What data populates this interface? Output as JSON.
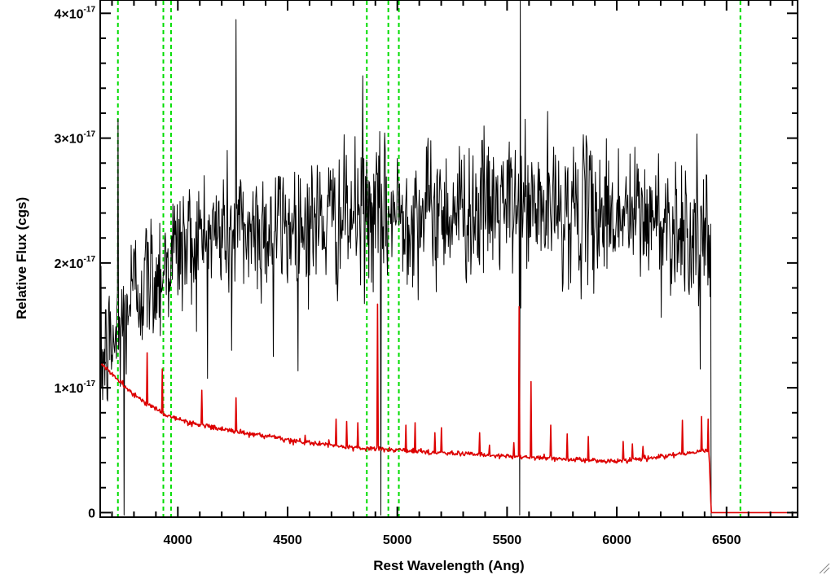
{
  "chart_data": {
    "type": "line",
    "xlabel": "Rest Wavelength (Ang)",
    "ylabel": "Relative Flux (cgs)",
    "xlim": [
      3650,
      6820
    ],
    "ylim": [
      -3e-19,
      4.1e-17
    ],
    "x_ticks": [
      {
        "value": 4000,
        "label": "4000"
      },
      {
        "value": 4500,
        "label": "4500"
      },
      {
        "value": 5000,
        "label": "5000"
      },
      {
        "value": 5500,
        "label": "5500"
      },
      {
        "value": 6000,
        "label": "6000"
      },
      {
        "value": 6500,
        "label": "6500"
      }
    ],
    "y_ticks": [
      {
        "value": 0,
        "label": "0",
        "mantissa": "",
        "exponent": ""
      },
      {
        "value": 1e-17,
        "label": "1×10⁻¹⁷",
        "mantissa": "1×10",
        "exponent": "-17"
      },
      {
        "value": 2e-17,
        "label": "2×10⁻¹⁷",
        "mantissa": "2×10",
        "exponent": "-17"
      },
      {
        "value": 3e-17,
        "label": "3×10⁻¹⁷",
        "mantissa": "3×10",
        "exponent": "-17"
      },
      {
        "value": 4e-17,
        "label": "4×10⁻¹⁷",
        "mantissa": "4×10",
        "exponent": "-17"
      }
    ],
    "x_minor_step": 100,
    "y_minor_step": 2e-18,
    "grid": false,
    "legend": "none",
    "reference_lines": {
      "style": "dashed",
      "color": "#00dd00",
      "x": [
        3727,
        3934,
        3969,
        4861,
        4959,
        5007,
        6563
      ]
    },
    "series": [
      {
        "color": "#000000",
        "style": "noisy",
        "x_range": [
          3650,
          6430
        ],
        "anchors": [
          {
            "x": 3650,
            "y": 1.2e-17
          },
          {
            "x": 3720,
            "y": 1.4e-17
          },
          {
            "x": 3800,
            "y": 1.8e-17
          },
          {
            "x": 3900,
            "y": 1.9e-17
          },
          {
            "x": 3980,
            "y": 2.1e-17
          },
          {
            "x": 4200,
            "y": 2.25e-17
          },
          {
            "x": 4500,
            "y": 2.3e-17
          },
          {
            "x": 5000,
            "y": 2.4e-17
          },
          {
            "x": 5500,
            "y": 2.45e-17
          },
          {
            "x": 6000,
            "y": 2.4e-17
          },
          {
            "x": 6300,
            "y": 2.3e-17
          },
          {
            "x": 6420,
            "y": 2.1e-17
          }
        ],
        "noise_sigma": 2.8e-18,
        "noise_step": 2.5,
        "spikes": [
          {
            "x": 3727,
            "y": 3.15e-17
          },
          {
            "x": 3755,
            "y": -2e-19
          },
          {
            "x": 4265,
            "y": 3.95e-17
          },
          {
            "x": 4842,
            "y": 3.5e-17
          },
          {
            "x": 5560,
            "y": 4.1e-17
          },
          {
            "x": 5557,
            "y": -2e-19
          },
          {
            "x": 4925,
            "y": -2e-19
          },
          {
            "x": 4245,
            "y": 1.3e-17
          },
          {
            "x": 4435,
            "y": 1.25e-17
          },
          {
            "x": 6380,
            "y": 1.15e-17
          },
          {
            "x": 6430,
            "y": -2e-19
          }
        ]
      },
      {
        "color": "#dd0000",
        "style": "noisy",
        "x_range": [
          3650,
          6820
        ],
        "anchors": [
          {
            "x": 3650,
            "y": 1.2e-17
          },
          {
            "x": 3750,
            "y": 1.02e-17
          },
          {
            "x": 3850,
            "y": 8.8e-18
          },
          {
            "x": 3950,
            "y": 7.8e-18
          },
          {
            "x": 4050,
            "y": 7.2e-18
          },
          {
            "x": 4200,
            "y": 6.7e-18
          },
          {
            "x": 4500,
            "y": 5.8e-18
          },
          {
            "x": 4800,
            "y": 5.2e-18
          },
          {
            "x": 5000,
            "y": 5e-18
          },
          {
            "x": 5500,
            "y": 4.5e-18
          },
          {
            "x": 6000,
            "y": 4.1e-18
          },
          {
            "x": 6300,
            "y": 4.7e-18
          },
          {
            "x": 6420,
            "y": 5e-18
          },
          {
            "x": 6430,
            "y": 0.0
          },
          {
            "x": 6820,
            "y": 0.0
          }
        ],
        "noise_sigma": 1e-19,
        "noise_step": 3,
        "spikes": [
          {
            "x": 3860,
            "y": 1.28e-17
          },
          {
            "x": 3930,
            "y": 1.15e-17
          },
          {
            "x": 4110,
            "y": 9.8e-18
          },
          {
            "x": 4265,
            "y": 9.2e-18
          },
          {
            "x": 4580,
            "y": 6.2e-18
          },
          {
            "x": 4720,
            "y": 7.5e-18
          },
          {
            "x": 4770,
            "y": 7.3e-18
          },
          {
            "x": 4820,
            "y": 7.2e-18
          },
          {
            "x": 4910,
            "y": 1.67e-17
          },
          {
            "x": 5040,
            "y": 7e-18
          },
          {
            "x": 5080,
            "y": 7.2e-18
          },
          {
            "x": 5170,
            "y": 6.4e-18
          },
          {
            "x": 5200,
            "y": 6.8e-18
          },
          {
            "x": 5375,
            "y": 6.4e-18
          },
          {
            "x": 5420,
            "y": 5.4e-18
          },
          {
            "x": 5530,
            "y": 5.6e-18
          },
          {
            "x": 5555,
            "y": 1.65e-17
          },
          {
            "x": 5610,
            "y": 1.05e-17
          },
          {
            "x": 5700,
            "y": 7e-18
          },
          {
            "x": 5775,
            "y": 6.3e-18
          },
          {
            "x": 5870,
            "y": 6.1e-18
          },
          {
            "x": 6030,
            "y": 5.7e-18
          },
          {
            "x": 6070,
            "y": 5.5e-18
          },
          {
            "x": 6120,
            "y": 5.3e-18
          },
          {
            "x": 6300,
            "y": 7.4e-18
          },
          {
            "x": 6385,
            "y": 7.7e-18
          },
          {
            "x": 6415,
            "y": 7.5e-18
          }
        ]
      }
    ]
  }
}
